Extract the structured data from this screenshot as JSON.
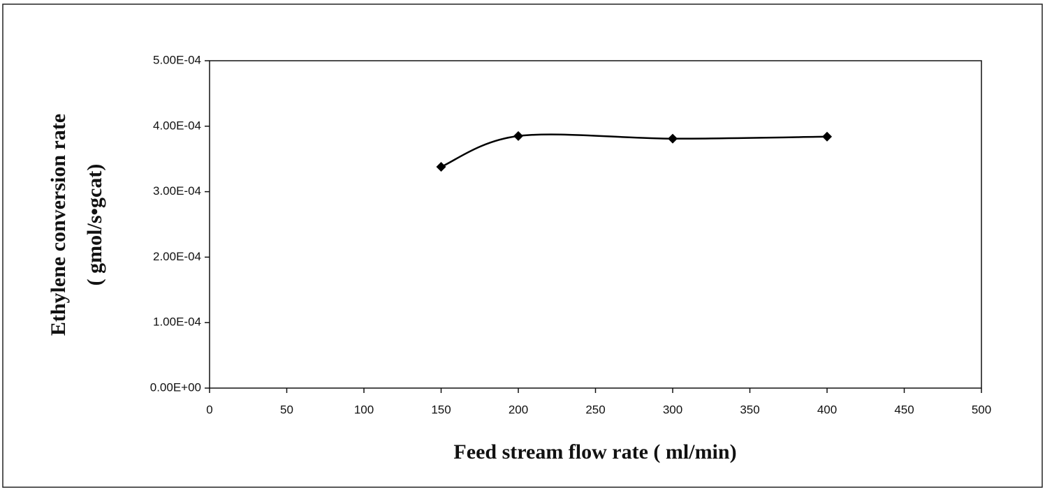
{
  "chart_data": {
    "type": "line",
    "smooth": true,
    "marker": "diamond",
    "color": "#000000",
    "x": [
      150,
      200,
      300,
      400
    ],
    "values": [
      0.000338,
      0.000385,
      0.000381,
      0.000384
    ],
    "xlabel": "Feed stream flow rate ( ml/min)",
    "ylabel": [
      "Ethylene conversion rate",
      "( gmol/s•gcat)"
    ],
    "xlim": [
      0,
      500
    ],
    "xticks": [
      0,
      50,
      100,
      150,
      200,
      250,
      300,
      350,
      400,
      450,
      500
    ],
    "ylim": [
      0,
      0.0005
    ],
    "yticks": [
      {
        "value": 0,
        "label": "0.00E+00"
      },
      {
        "value": 0.0001,
        "label": "1.00E-04"
      },
      {
        "value": 0.0002,
        "label": "2.00E-04"
      },
      {
        "value": 0.0003,
        "label": "3.00E-04"
      },
      {
        "value": 0.0004,
        "label": "4.00E-04"
      },
      {
        "value": 0.0005,
        "label": "5.00E-04"
      }
    ],
    "grid": false
  }
}
